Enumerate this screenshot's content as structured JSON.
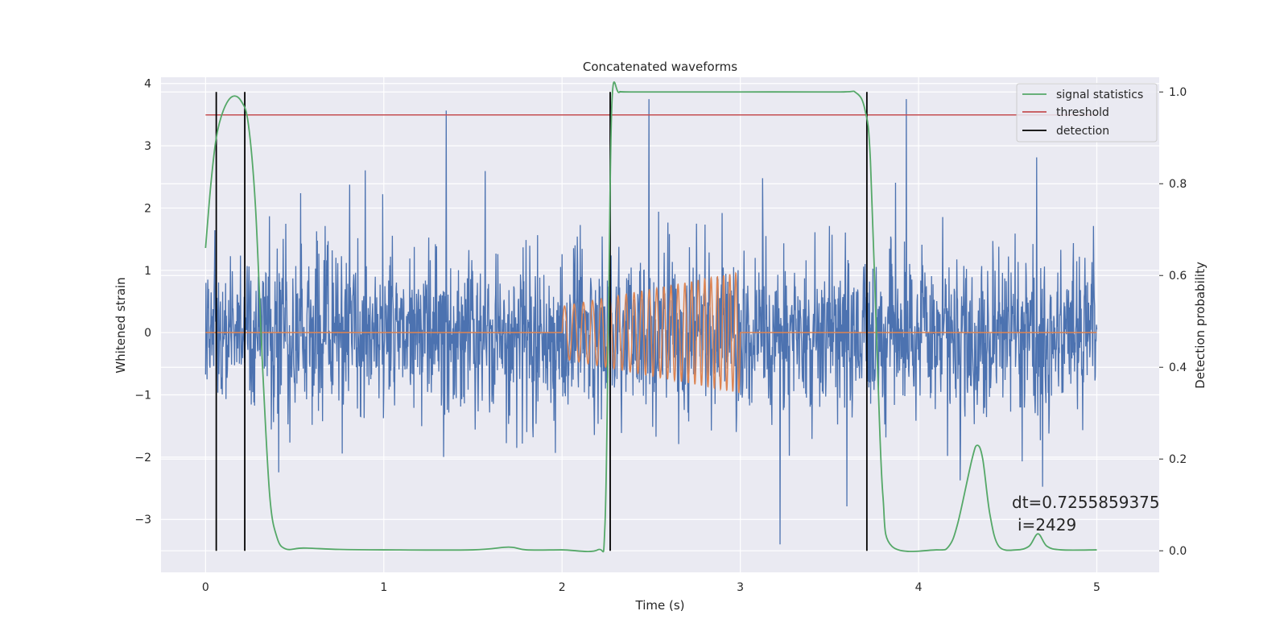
{
  "chart_data": {
    "type": "line",
    "title": "Concatenated waveforms",
    "xlabel": "Time (s)",
    "ylabel": "Whitened strain",
    "ylabel_right": "Detection probability",
    "xlim": [
      -0.25,
      5.35
    ],
    "ylim": [
      -3.85,
      4.1
    ],
    "ylim_right": [
      -0.047,
      1.032
    ],
    "x_ticks": [
      0,
      1,
      2,
      3,
      4,
      5
    ],
    "x_tick_labels": [
      "0",
      "1",
      "2",
      "3",
      "4",
      "5"
    ],
    "y_ticks": [
      -3,
      -2,
      -1,
      0,
      1,
      2,
      3,
      4
    ],
    "y_tick_labels": [
      "−3",
      "−2",
      "−1",
      "0",
      "1",
      "2",
      "3",
      "4"
    ],
    "y_right_ticks": [
      0.0,
      0.2,
      0.4,
      0.6,
      0.8,
      1.0
    ],
    "y_right_tick_labels": [
      "0.0",
      "0.2",
      "0.4",
      "0.6",
      "0.8",
      "1.0"
    ],
    "grid": true,
    "legend_position": "top-right",
    "colors": {
      "strain": "#4c72b0",
      "injection": "#dd8452",
      "signal_statistics": "#55a868",
      "threshold": "#c44e52",
      "detection": "#000000",
      "plot_background": "#eaeaf2",
      "grid": "#ffffff"
    },
    "series": [
      {
        "name": "signal statistics",
        "axis": "right",
        "x": [
          0.0,
          0.03,
          0.06,
          0.1,
          0.15,
          0.2,
          0.24,
          0.28,
          0.32,
          0.36,
          0.4,
          0.45,
          0.55,
          0.75,
          1.0,
          1.5,
          1.7,
          1.8,
          2.0,
          2.2,
          2.24,
          2.26,
          2.28,
          2.32,
          2.4,
          3.0,
          3.55,
          3.65,
          3.7,
          3.73,
          3.77,
          3.8,
          3.85,
          4.1,
          4.17,
          4.22,
          4.3,
          4.33,
          4.36,
          4.4,
          4.45,
          4.55,
          4.62,
          4.67,
          4.72,
          4.8,
          5.0
        ],
        "y": [
          0.66,
          0.8,
          0.9,
          0.96,
          0.99,
          0.98,
          0.93,
          0.75,
          0.4,
          0.12,
          0.03,
          0.004,
          0.006,
          0.003,
          0.002,
          0.002,
          0.008,
          0.002,
          0.002,
          0.002,
          0.05,
          0.5,
          0.98,
          0.999,
          1.0,
          1.0,
          1.0,
          0.998,
          0.96,
          0.85,
          0.4,
          0.12,
          0.01,
          0.002,
          0.01,
          0.06,
          0.2,
          0.23,
          0.2,
          0.08,
          0.01,
          0.002,
          0.01,
          0.037,
          0.01,
          0.002,
          0.002
        ]
      },
      {
        "name": "threshold",
        "axis": "right",
        "x": [
          0.0,
          5.0
        ],
        "y": [
          0.95,
          0.95
        ]
      },
      {
        "name": "detection",
        "axis": "right",
        "x_lines": [
          0.06,
          0.22,
          2.27,
          3.71
        ],
        "y_range": [
          0.0,
          1.0
        ]
      }
    ],
    "annotation": {
      "dt_text": "dt=0.7255859375",
      "i_text": "i=2429",
      "x": 4.5,
      "y": -2.9
    }
  }
}
